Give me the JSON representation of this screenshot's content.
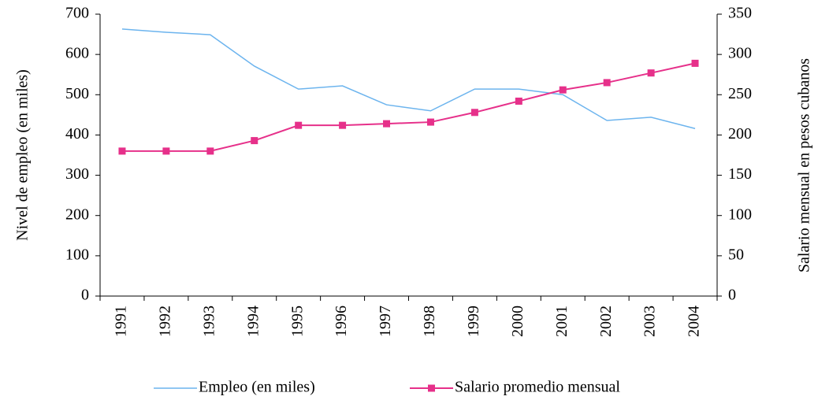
{
  "chart_data": {
    "type": "line",
    "categories": [
      "1991",
      "1992",
      "1993",
      "1994",
      "1995",
      "1996",
      "1997",
      "1998",
      "1999",
      "2000",
      "2001",
      "2002",
      "2003",
      "2004"
    ],
    "y_label": "Nivel de empleo (en miles)",
    "y2_label": "Salario mensual en pesos cubanos",
    "ylim": [
      0,
      700
    ],
    "yticks": [
      0,
      100,
      200,
      300,
      400,
      500,
      600,
      700
    ],
    "y2lim": [
      0,
      350
    ],
    "y2ticks": [
      0,
      50,
      100,
      150,
      200,
      250,
      300,
      350
    ],
    "legend": "bottom",
    "series": [
      {
        "name": "Empleo (en miles)",
        "color": "#6cb4ee",
        "marker": false,
        "values": [
          663,
          655,
          649,
          571,
          514,
          522,
          475,
          460,
          514,
          514,
          500,
          436,
          444,
          416
        ]
      },
      {
        "name": "Salario promedio mensual",
        "color": "#e6308a",
        "marker": true,
        "axis": "y2",
        "values": [
          180,
          180,
          180,
          193,
          212,
          212,
          214,
          216,
          228,
          242,
          256,
          265,
          277,
          289
        ]
      }
    ]
  }
}
